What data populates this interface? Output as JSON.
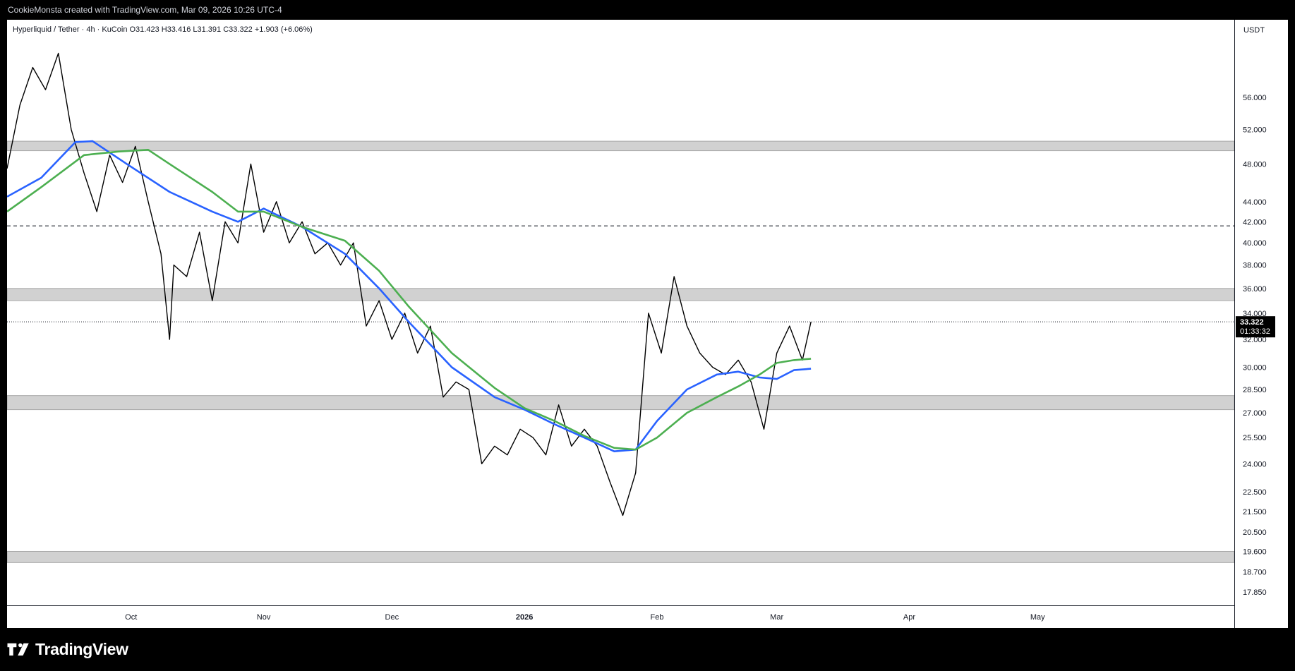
{
  "header": {
    "attribution": "CookieMonsta created with TradingView.com, Mar 09, 2026 10:26 UTC-4"
  },
  "footer": {
    "brand": "TradingView"
  },
  "colors": {
    "background": "#ffffff",
    "frame": "#000000",
    "candle": "#000000",
    "ema_fast": "#2962ff",
    "ema_slow": "#4caf50",
    "zone": "#d1d1d1",
    "text": "#131722"
  },
  "chart_data": {
    "type": "line",
    "symbol_info": {
      "title": "Hyperliquid / Tether · 4h · KuCoin",
      "open": "O31.423",
      "high": "H33.416",
      "low": "L31.391",
      "close": "C33.322",
      "change": "+1.903 (+6.06%)"
    },
    "scale": "log",
    "currency": "USDT",
    "last_price": "33.322",
    "countdown": "01:33:32",
    "ylim": [
      17.3,
      67
    ],
    "y_ticks": [
      "56.000",
      "52.000",
      "48.000",
      "44.000",
      "42.000",
      "40.000",
      "38.000",
      "36.000",
      "34.000",
      "32.000",
      "30.000",
      "28.500",
      "27.000",
      "25.500",
      "24.000",
      "22.500",
      "21.500",
      "20.500",
      "19.600",
      "18.700",
      "17.850"
    ],
    "x_ticks": [
      "Oct",
      "Nov",
      "Dec",
      "2026",
      "Feb",
      "Mar",
      "Apr",
      "May"
    ],
    "x_tick_dates": [
      "2025-10-01",
      "2025-11-01",
      "2025-12-01",
      "2026-01-01",
      "2026-02-01",
      "2026-03-01",
      "2026-04-01",
      "2026-05-01"
    ],
    "x_range": [
      "2025-09-02",
      "2026-06-16"
    ],
    "zones": [
      {
        "low": 49.5,
        "high": 50.6
      },
      {
        "low": 35.0,
        "high": 36.0
      },
      {
        "low": 27.2,
        "high": 28.1
      },
      {
        "low": 19.1,
        "high": 19.6
      }
    ],
    "hlines": [
      {
        "value": 41.6,
        "style": "dashed"
      },
      {
        "value": 33.322,
        "style": "dotted"
      }
    ],
    "series": [
      {
        "type": "close_line",
        "x": [
          "2025-09-02",
          "2025-09-05",
          "2025-09-08",
          "2025-09-11",
          "2025-09-14",
          "2025-09-17",
          "2025-09-20",
          "2025-09-23",
          "2025-09-26",
          "2025-09-29",
          "2025-10-02",
          "2025-10-05",
          "2025-10-08",
          "2025-10-10",
          "2025-10-11",
          "2025-10-14",
          "2025-10-17",
          "2025-10-20",
          "2025-10-23",
          "2025-10-26",
          "2025-10-29",
          "2025-11-01",
          "2025-11-04",
          "2025-11-07",
          "2025-11-10",
          "2025-11-13",
          "2025-11-16",
          "2025-11-19",
          "2025-11-22",
          "2025-11-25",
          "2025-11-28",
          "2025-12-01",
          "2025-12-04",
          "2025-12-07",
          "2025-12-10",
          "2025-12-13",
          "2025-12-16",
          "2025-12-19",
          "2025-12-22",
          "2025-12-25",
          "2025-12-28",
          "2025-12-31",
          "2026-01-03",
          "2026-01-06",
          "2026-01-09",
          "2026-01-12",
          "2026-01-15",
          "2026-01-18",
          "2026-01-21",
          "2026-01-24",
          "2026-01-27",
          "2026-01-30",
          "2026-02-02",
          "2026-02-05",
          "2026-02-08",
          "2026-02-11",
          "2026-02-14",
          "2026-02-17",
          "2026-02-20",
          "2026-02-23",
          "2026-02-26",
          "2026-03-01",
          "2026-03-04",
          "2026-03-07",
          "2026-03-09"
        ],
        "values": [
          47.5,
          55,
          60,
          57,
          62,
          52,
          47,
          43,
          49,
          46,
          50,
          44,
          39,
          32,
          38,
          37,
          41,
          35,
          42,
          40,
          48,
          41,
          44,
          40,
          42,
          39,
          40,
          38,
          40,
          33,
          35,
          32,
          34,
          31,
          33,
          28,
          29,
          28.5,
          24,
          25,
          24.5,
          26,
          25.5,
          24.5,
          27.5,
          25,
          26,
          25,
          23,
          21.3,
          23.5,
          34,
          31,
          37,
          33,
          31,
          30,
          29.5,
          30.5,
          29,
          26,
          31,
          33,
          30.5,
          33.322
        ]
      },
      {
        "type": "ema_fast",
        "color": "#2962ff",
        "x": [
          "2025-09-02",
          "2025-09-10",
          "2025-09-18",
          "2025-09-22",
          "2025-09-30",
          "2025-10-10",
          "2025-10-20",
          "2025-10-26",
          "2025-11-01",
          "2025-11-10",
          "2025-11-20",
          "2025-11-28",
          "2025-12-05",
          "2025-12-15",
          "2025-12-25",
          "2026-01-01",
          "2026-01-08",
          "2026-01-15",
          "2026-01-22",
          "2026-01-27",
          "2026-02-01",
          "2026-02-08",
          "2026-02-15",
          "2026-02-20",
          "2026-02-25",
          "2026-03-01",
          "2026-03-05",
          "2026-03-09"
        ],
        "values": [
          44.5,
          46.5,
          50.5,
          50.6,
          48,
          45,
          43,
          42,
          43.3,
          41.5,
          39,
          36,
          33.3,
          30,
          28,
          27.2,
          26.3,
          25.5,
          24.7,
          24.8,
          26.5,
          28.5,
          29.5,
          29.7,
          29.3,
          29.2,
          29.8,
          29.9
        ]
      },
      {
        "type": "ema_slow",
        "color": "#4caf50",
        "x": [
          "2025-09-02",
          "2025-09-10",
          "2025-09-20",
          "2025-09-28",
          "2025-10-05",
          "2025-10-10",
          "2025-10-20",
          "2025-10-26",
          "2025-11-01",
          "2025-11-10",
          "2025-11-20",
          "2025-11-28",
          "2025-12-05",
          "2025-12-15",
          "2025-12-25",
          "2026-01-01",
          "2026-01-08",
          "2026-01-15",
          "2026-01-22",
          "2026-01-27",
          "2026-02-01",
          "2026-02-08",
          "2026-02-15",
          "2026-02-20",
          "2026-02-25",
          "2026-03-01",
          "2026-03-05",
          "2026-03-09"
        ],
        "values": [
          43,
          45.5,
          49,
          49.4,
          49.6,
          48,
          45,
          43,
          43,
          41.5,
          40.2,
          37.5,
          34.5,
          31,
          28.6,
          27.3,
          26.5,
          25.6,
          24.9,
          24.8,
          25.5,
          27,
          28,
          28.7,
          29.5,
          30.3,
          30.5,
          30.6
        ]
      }
    ]
  }
}
